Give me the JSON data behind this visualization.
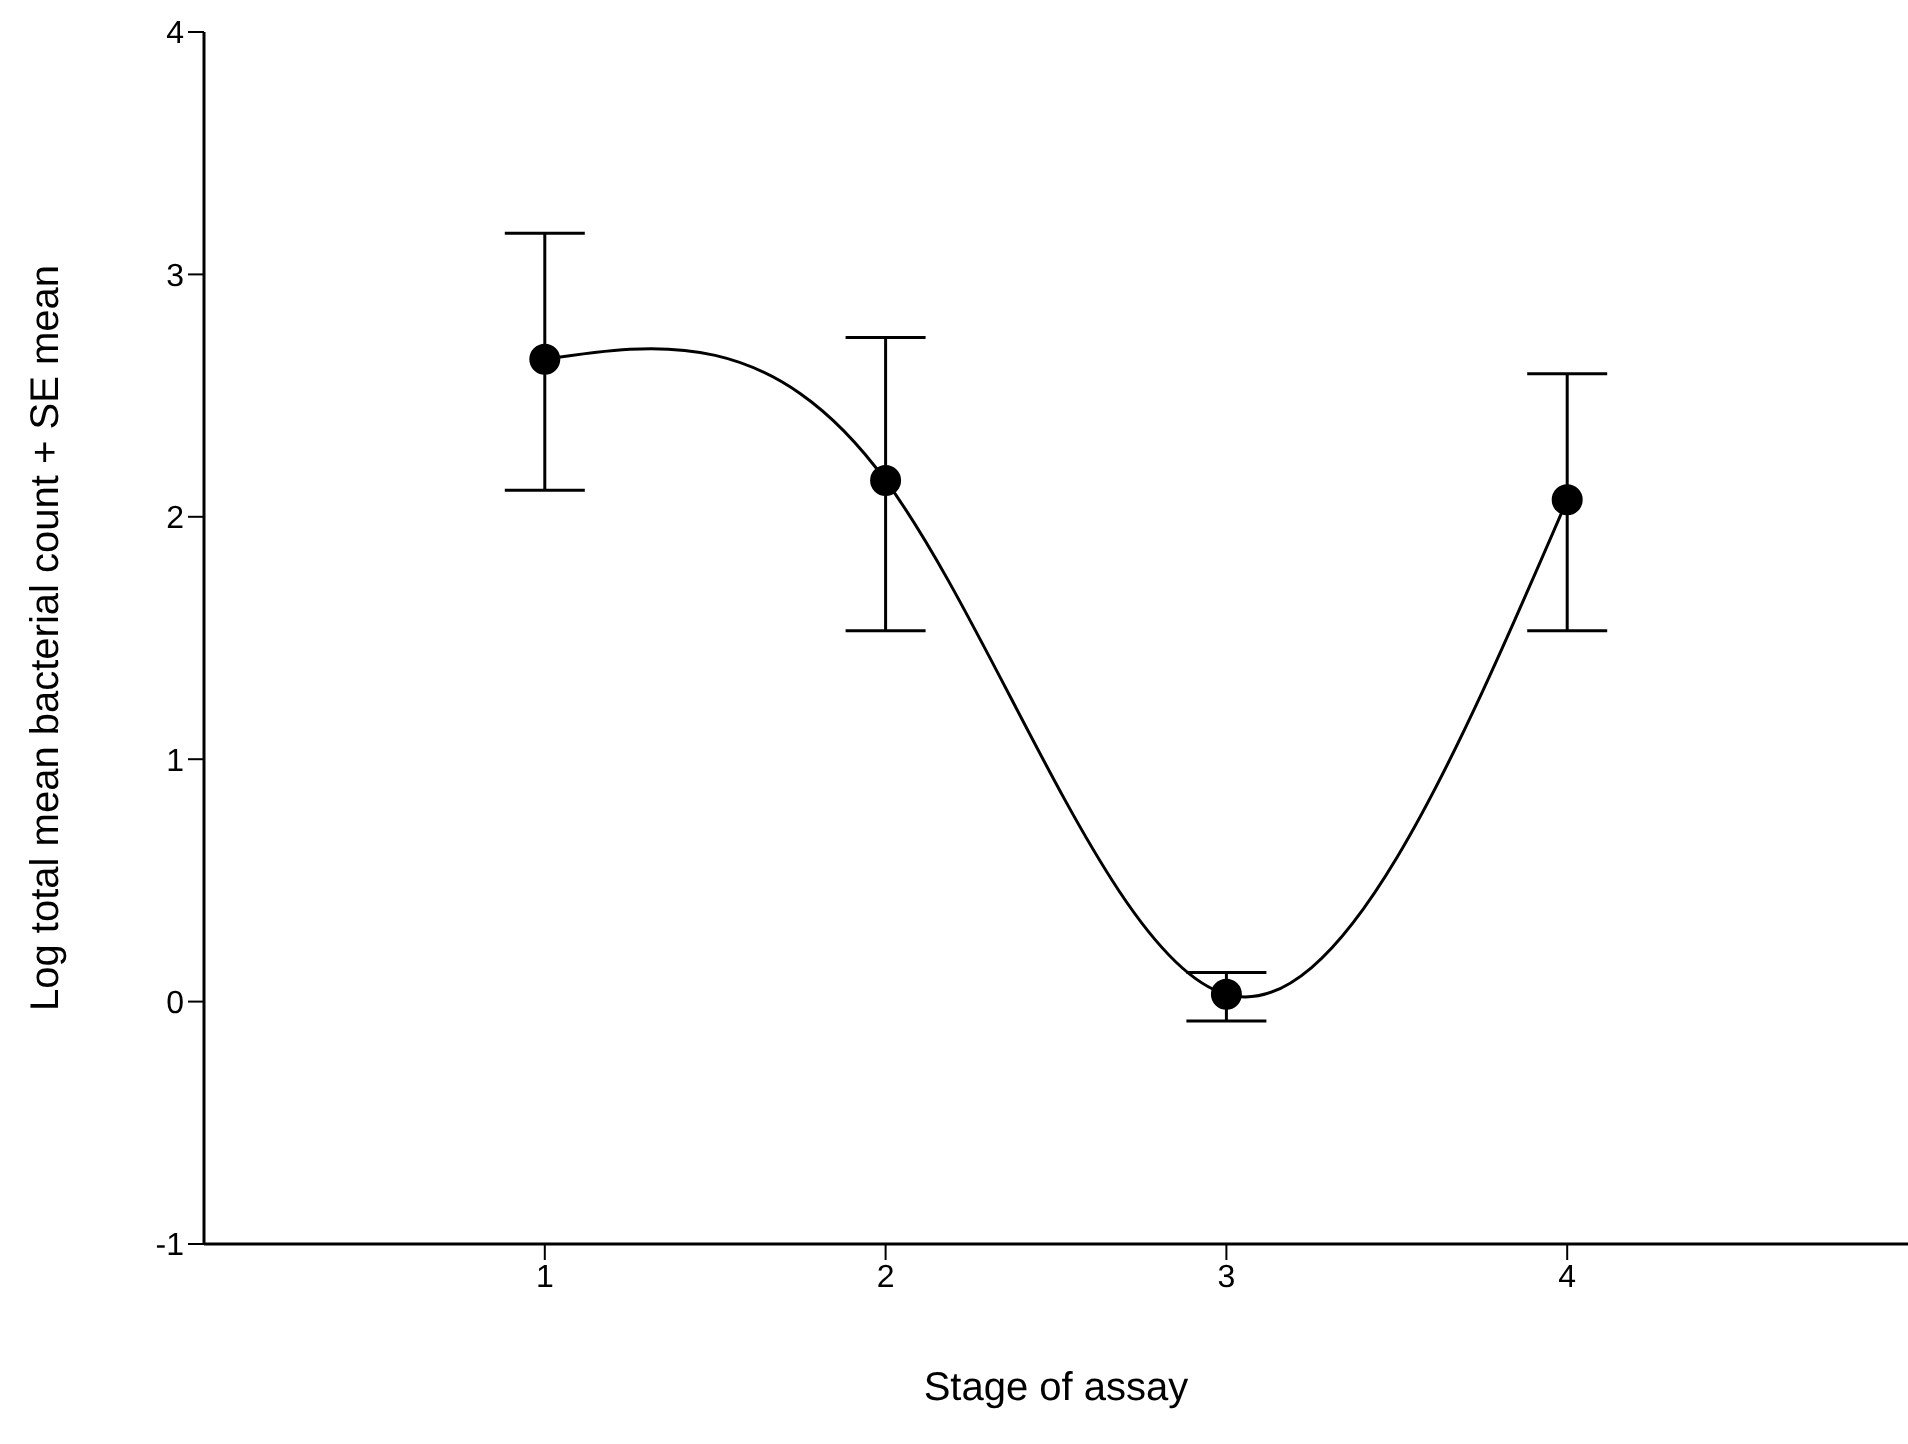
{
  "chart_data": {
    "type": "line",
    "xlabel": "Stage of assay",
    "ylabel": "Log total mean bacterial count + SE mean",
    "x": [
      1,
      2,
      3,
      4
    ],
    "series": [
      {
        "color": "#000000",
        "values": [
          2.65,
          2.15,
          0.03,
          2.07
        ],
        "errors": [
          [
            2.11,
            3.17
          ],
          [
            1.53,
            2.74
          ],
          [
            -0.08,
            0.12
          ],
          [
            1.53,
            2.59
          ]
        ]
      }
    ],
    "xlim": [
      0,
      5
    ],
    "xticks": [
      1,
      2,
      3,
      4
    ],
    "ylim": [
      -1,
      4
    ],
    "yticks": [
      -1,
      0,
      1,
      2,
      3,
      4
    ],
    "grid": false,
    "legend": false,
    "marker": "circle",
    "line_style": "solid"
  }
}
